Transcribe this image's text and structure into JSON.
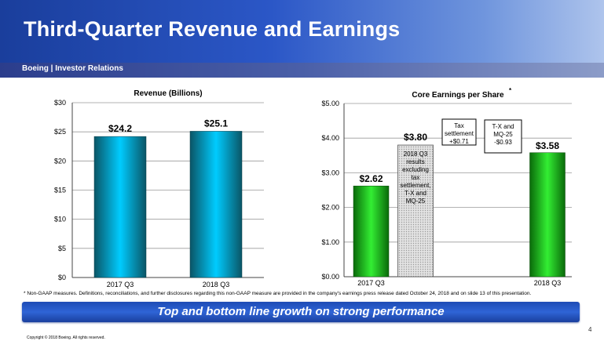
{
  "header": {
    "title": "Third-Quarter Revenue and Earnings",
    "subtitle": "Boeing | Investor Relations"
  },
  "colors": {
    "revenue_bar": "#00ccff",
    "eps_bar": "#22dd22",
    "adjusted_bar": "#cccccc"
  },
  "chart_data": [
    {
      "type": "bar",
      "title": "Revenue (Billions)",
      "categories": [
        "2017 Q3",
        "2018 Q3"
      ],
      "values": [
        24.2,
        25.1
      ],
      "data_labels": [
        "$24.2",
        "$25.1"
      ],
      "ylim": [
        0,
        30
      ],
      "yticks": [
        0,
        5,
        10,
        15,
        20,
        25,
        30
      ],
      "ytick_labels": [
        "$0",
        "$5",
        "$10",
        "$15",
        "$20",
        "$25",
        "$30"
      ],
      "grid": true
    },
    {
      "type": "bar",
      "title": "Core Earnings per Share",
      "title_marker": "*",
      "categories": [
        "2017 Q3",
        "2018 Q3"
      ],
      "values": [
        2.62,
        3.58
      ],
      "data_labels": [
        "$2.62",
        "$3.58"
      ],
      "adjusted": {
        "value": 3.8,
        "label": "$3.80",
        "text": "2018 Q3 results excluding tax settlement, T-X and MQ-25"
      },
      "callouts": [
        {
          "text": "Tax settlement +$0.71"
        },
        {
          "text": "T-X and MQ-25 -$0.93"
        }
      ],
      "ylim": [
        0,
        5
      ],
      "yticks": [
        0,
        1,
        2,
        3,
        4,
        5
      ],
      "ytick_labels": [
        "$0.00",
        "$1.00",
        "$2.00",
        "$3.00",
        "$4.00",
        "$5.00"
      ],
      "grid": true
    }
  ],
  "footnote": "*   Non-GAAP measures. Definitions, reconciliations, and further disclosures regarding this non-GAAP measure are provided in the company's earnings press release dated October 24, 2018 and on slide 13 of this presentation.",
  "banner": "Top and bottom line growth on strong performance",
  "page_number": "4",
  "copyright": "Copyright © 2018 Boeing. All rights reserved."
}
